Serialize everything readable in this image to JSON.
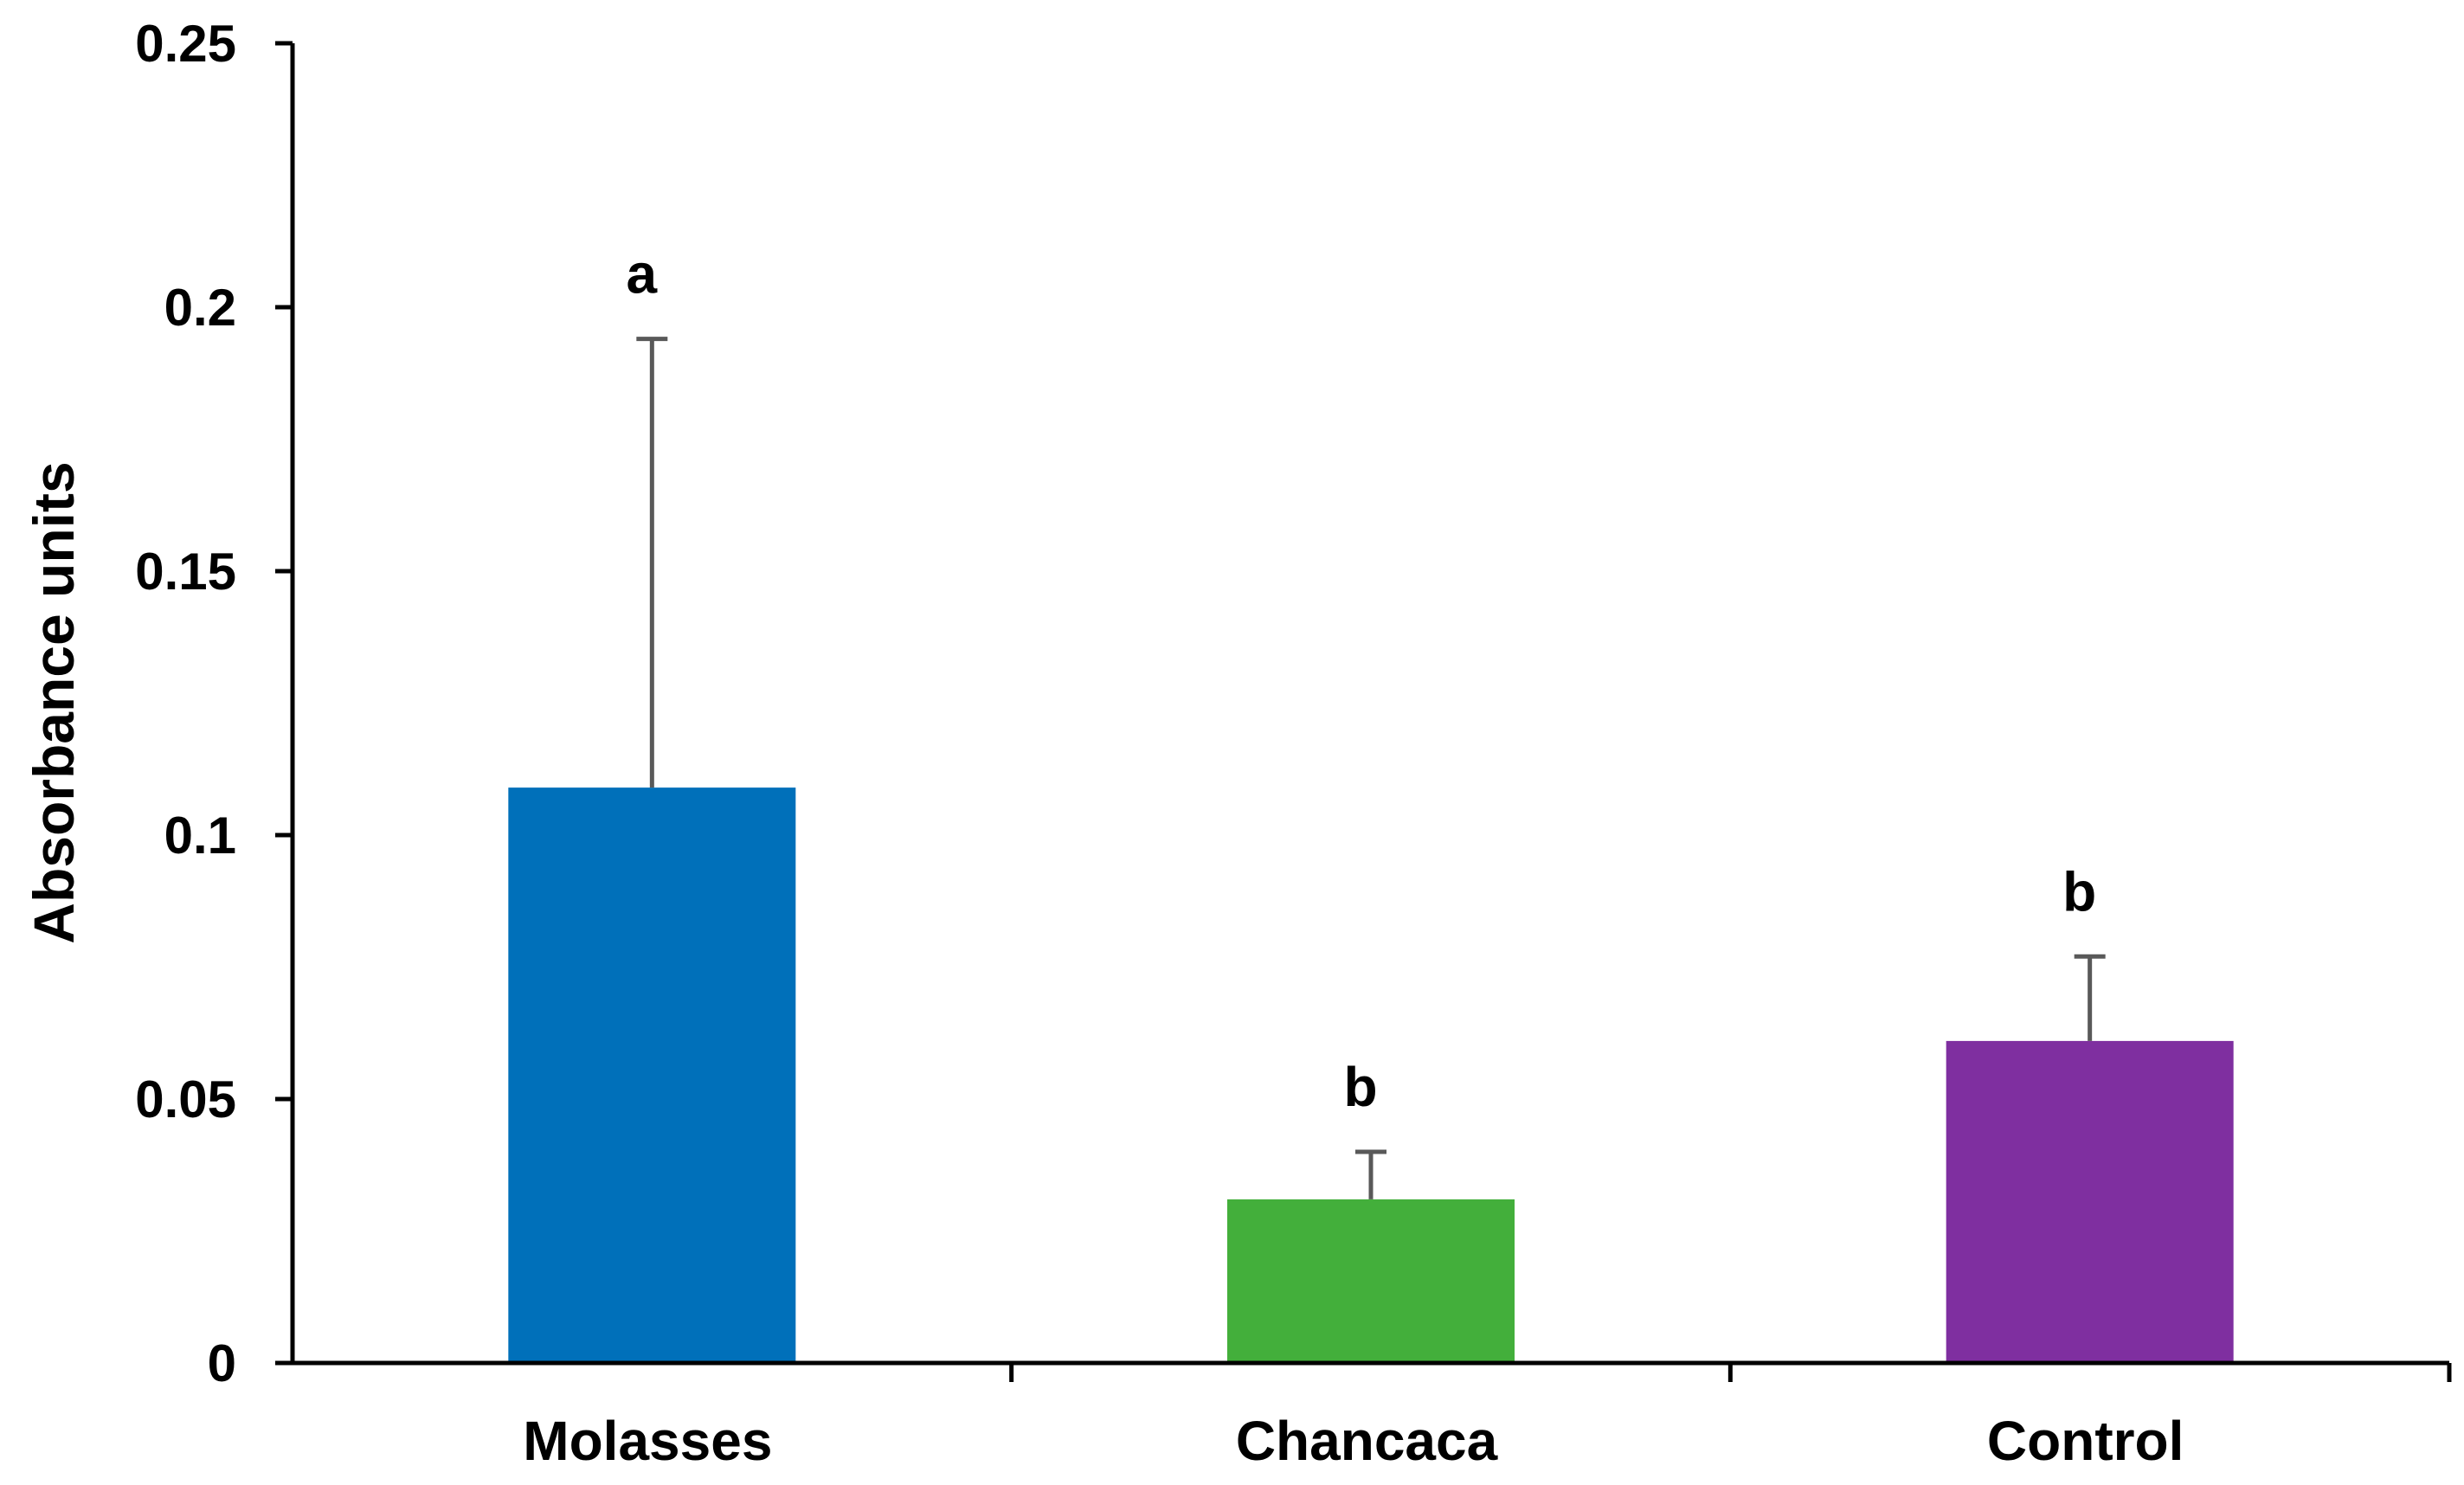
{
  "chart_data": {
    "type": "bar",
    "title": "",
    "xlabel": "",
    "ylabel": "Absorbance units",
    "ylim": [
      0,
      0.25
    ],
    "yticks": [
      0,
      0.05,
      0.1,
      0.15,
      0.2,
      0.25
    ],
    "ytick_labels": [
      "0",
      "0.05",
      "0.1",
      "0.15",
      "0.2",
      "0.25"
    ],
    "categories": [
      "Molasses",
      "Chancaca",
      "Control"
    ],
    "values": [
      0.109,
      0.031,
      0.061
    ],
    "error_upper": [
      0.085,
      0.009,
      0.016
    ],
    "significance": [
      "a",
      "b",
      "b"
    ],
    "colors": [
      "#0070BA",
      "#43AF3B",
      "#7F2FA0"
    ],
    "grid": false,
    "legend": "none"
  }
}
